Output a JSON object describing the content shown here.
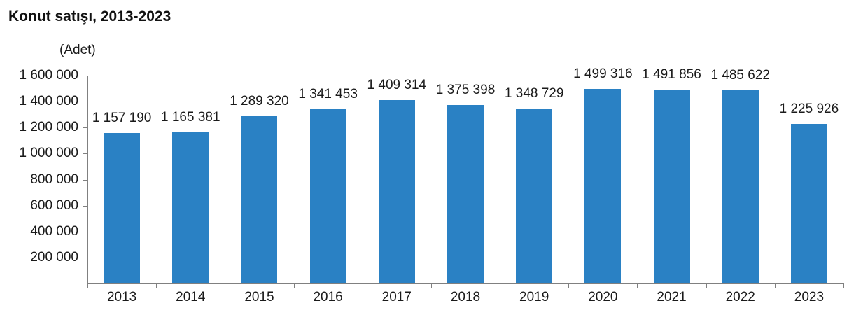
{
  "colors": {
    "bar": "#2A81C4",
    "axis": "#808080",
    "text": "#1A1A1A"
  },
  "chart_data": {
    "type": "bar",
    "title": "Konut satışı, 2013-2023",
    "unit": "(Adet)",
    "xlabel": "",
    "ylabel": "Adet",
    "categories": [
      "2013",
      "2014",
      "2015",
      "2016",
      "2017",
      "2018",
      "2019",
      "2020",
      "2021",
      "2022",
      "2023"
    ],
    "values": [
      1157190,
      1165381,
      1289320,
      1341453,
      1409314,
      1375398,
      1348729,
      1499316,
      1491856,
      1485622,
      1225926
    ],
    "value_labels": [
      "1 157 190",
      "1 165 381",
      "1 289 320",
      "1 341 453",
      "1 409 314",
      "1 375 398",
      "1 348 729",
      "1 499 316",
      "1 491 856",
      "1 485 622",
      "1 225 926"
    ],
    "ylim": [
      0,
      1600000
    ],
    "y_tick_step": 200000,
    "y_tick_labels": [
      "200 000",
      "400 000",
      "600 000",
      "800 000",
      "1 000 000",
      "1 200 000",
      "1 400 000",
      "1 600 000"
    ],
    "grid": false,
    "legend": "none"
  }
}
